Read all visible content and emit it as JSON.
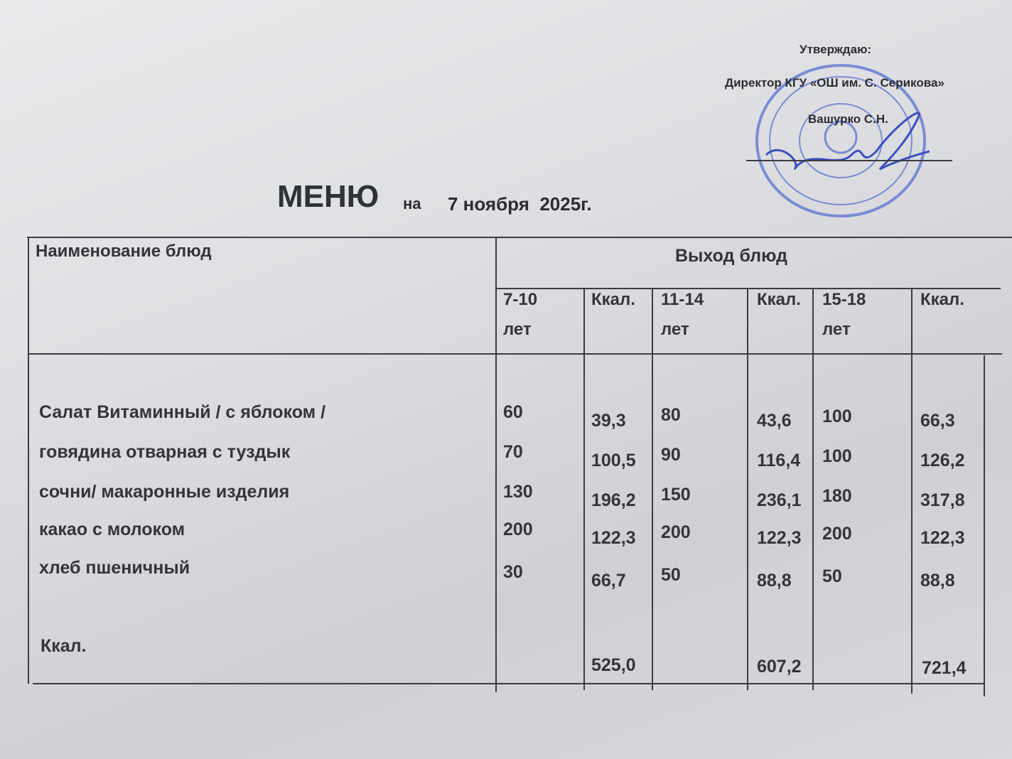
{
  "approval": {
    "approve": "Утверждаю:",
    "director": "Директор КГУ «ОШ им. С. Серикова»",
    "name": "Вашурко С.Н.",
    "stamp_color": "#4a63c9"
  },
  "title": {
    "main": "МЕНЮ",
    "on": "на",
    "date": "7 ноября  2025г."
  },
  "table": {
    "header_name": "Наименование блюд",
    "header_output": "Выход блюд",
    "columns": [
      "7-10 лет",
      "Ккал.",
      "11-14 лет",
      "Ккал.",
      "15-18 лет",
      "Ккал."
    ],
    "columns_lines": [
      [
        "7-10",
        "лет"
      ],
      [
        "Ккал.",
        ""
      ],
      [
        "11-14",
        "лет"
      ],
      [
        "Ккал.",
        ""
      ],
      [
        "15-18",
        "лет"
      ],
      [
        "Ккал.",
        ""
      ]
    ],
    "rows": [
      {
        "name": "Салат Витаминный / с яблоком /",
        "values": [
          "60",
          "39,3",
          "80",
          "43,6",
          "100",
          "66,3"
        ]
      },
      {
        "name": "говядина отварная с туздык",
        "values": [
          "70",
          "100,5",
          "90",
          "116,4",
          "100",
          "126,2"
        ]
      },
      {
        "name": "сочни/ макаронные изделия",
        "values": [
          "130",
          "196,2",
          "150",
          "236,1",
          "180",
          "317,8"
        ]
      },
      {
        "name": "какао с молоком",
        "values": [
          "200",
          "122,3",
          "200",
          "122,3",
          "200",
          "122,3"
        ]
      },
      {
        "name": "хлеб пшеничный",
        "values": [
          "30",
          "66,7",
          "50",
          "88,8",
          "50",
          "88,8"
        ]
      }
    ],
    "total": {
      "label": "Ккал.",
      "values": [
        "525,0",
        "607,2",
        "721,4"
      ]
    }
  }
}
